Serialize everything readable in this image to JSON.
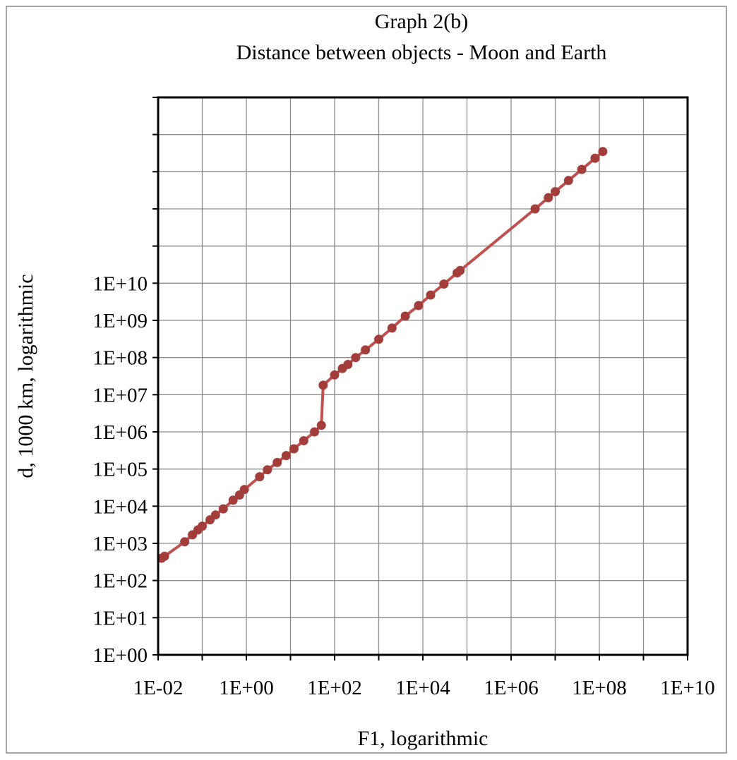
{
  "chart_data": {
    "type": "line",
    "title": "Graph 2(b)",
    "subtitle": "Distance between objects - Moon and Earth",
    "xlabel": "F1, logarithmic",
    "ylabel": "d, 1000 km, logarithmic",
    "x_scale": "log",
    "y_scale": "log",
    "xlim": [
      0.01,
      10000000000
    ],
    "ylim": [
      1,
      1000000000000000
    ],
    "x_ticks": [
      "1E-02",
      "1E+00",
      "1E+02",
      "1E+04",
      "1E+06",
      "1E+08",
      "1E+10"
    ],
    "y_ticks": [
      "1E+00",
      "1E+01",
      "1E+02",
      "1E+03",
      "1E+04",
      "1E+05",
      "1E+06",
      "1E+07",
      "1E+08",
      "1E+09",
      "1E+10"
    ],
    "grid": true,
    "legend": "none",
    "line_color": "#c0504d",
    "marker_color": "#a33d3a",
    "series": [
      {
        "x": [
          0.012,
          0.014,
          0.04,
          0.06,
          0.08,
          0.1,
          0.15,
          0.2,
          0.3,
          0.5,
          0.7,
          0.9,
          2.0,
          3.0,
          5.0,
          8.0,
          12.0,
          20.0,
          35.0,
          50.0,
          55.0,
          100.0,
          150.0,
          200.0,
          300.0,
          500.0,
          1000.0,
          2000.0,
          4000.0,
          8000.0,
          15000.0,
          30000.0,
          60000.0,
          70000.0,
          3500000.0,
          7000000.0,
          10000000.0,
          20000000.0,
          40000000.0,
          80000000.0,
          120000000.0
        ],
        "y": [
          400,
          450,
          1100,
          1700,
          2300,
          2900,
          4300,
          5800,
          8500,
          14500,
          20000,
          28000,
          62000,
          95000,
          150000,
          230000,
          350000,
          580000,
          1000000,
          1500000,
          18000000,
          34000000,
          51000000,
          65000000,
          100000000,
          160000000,
          310000000,
          620000000,
          1300000000,
          2500000000,
          4800000000,
          9500000000,
          19000000000,
          22000000000,
          1000000000000,
          2000000000000,
          2900000000000,
          5800000000000,
          11500000000000,
          23000000000000,
          35000000000000
        ]
      }
    ]
  }
}
